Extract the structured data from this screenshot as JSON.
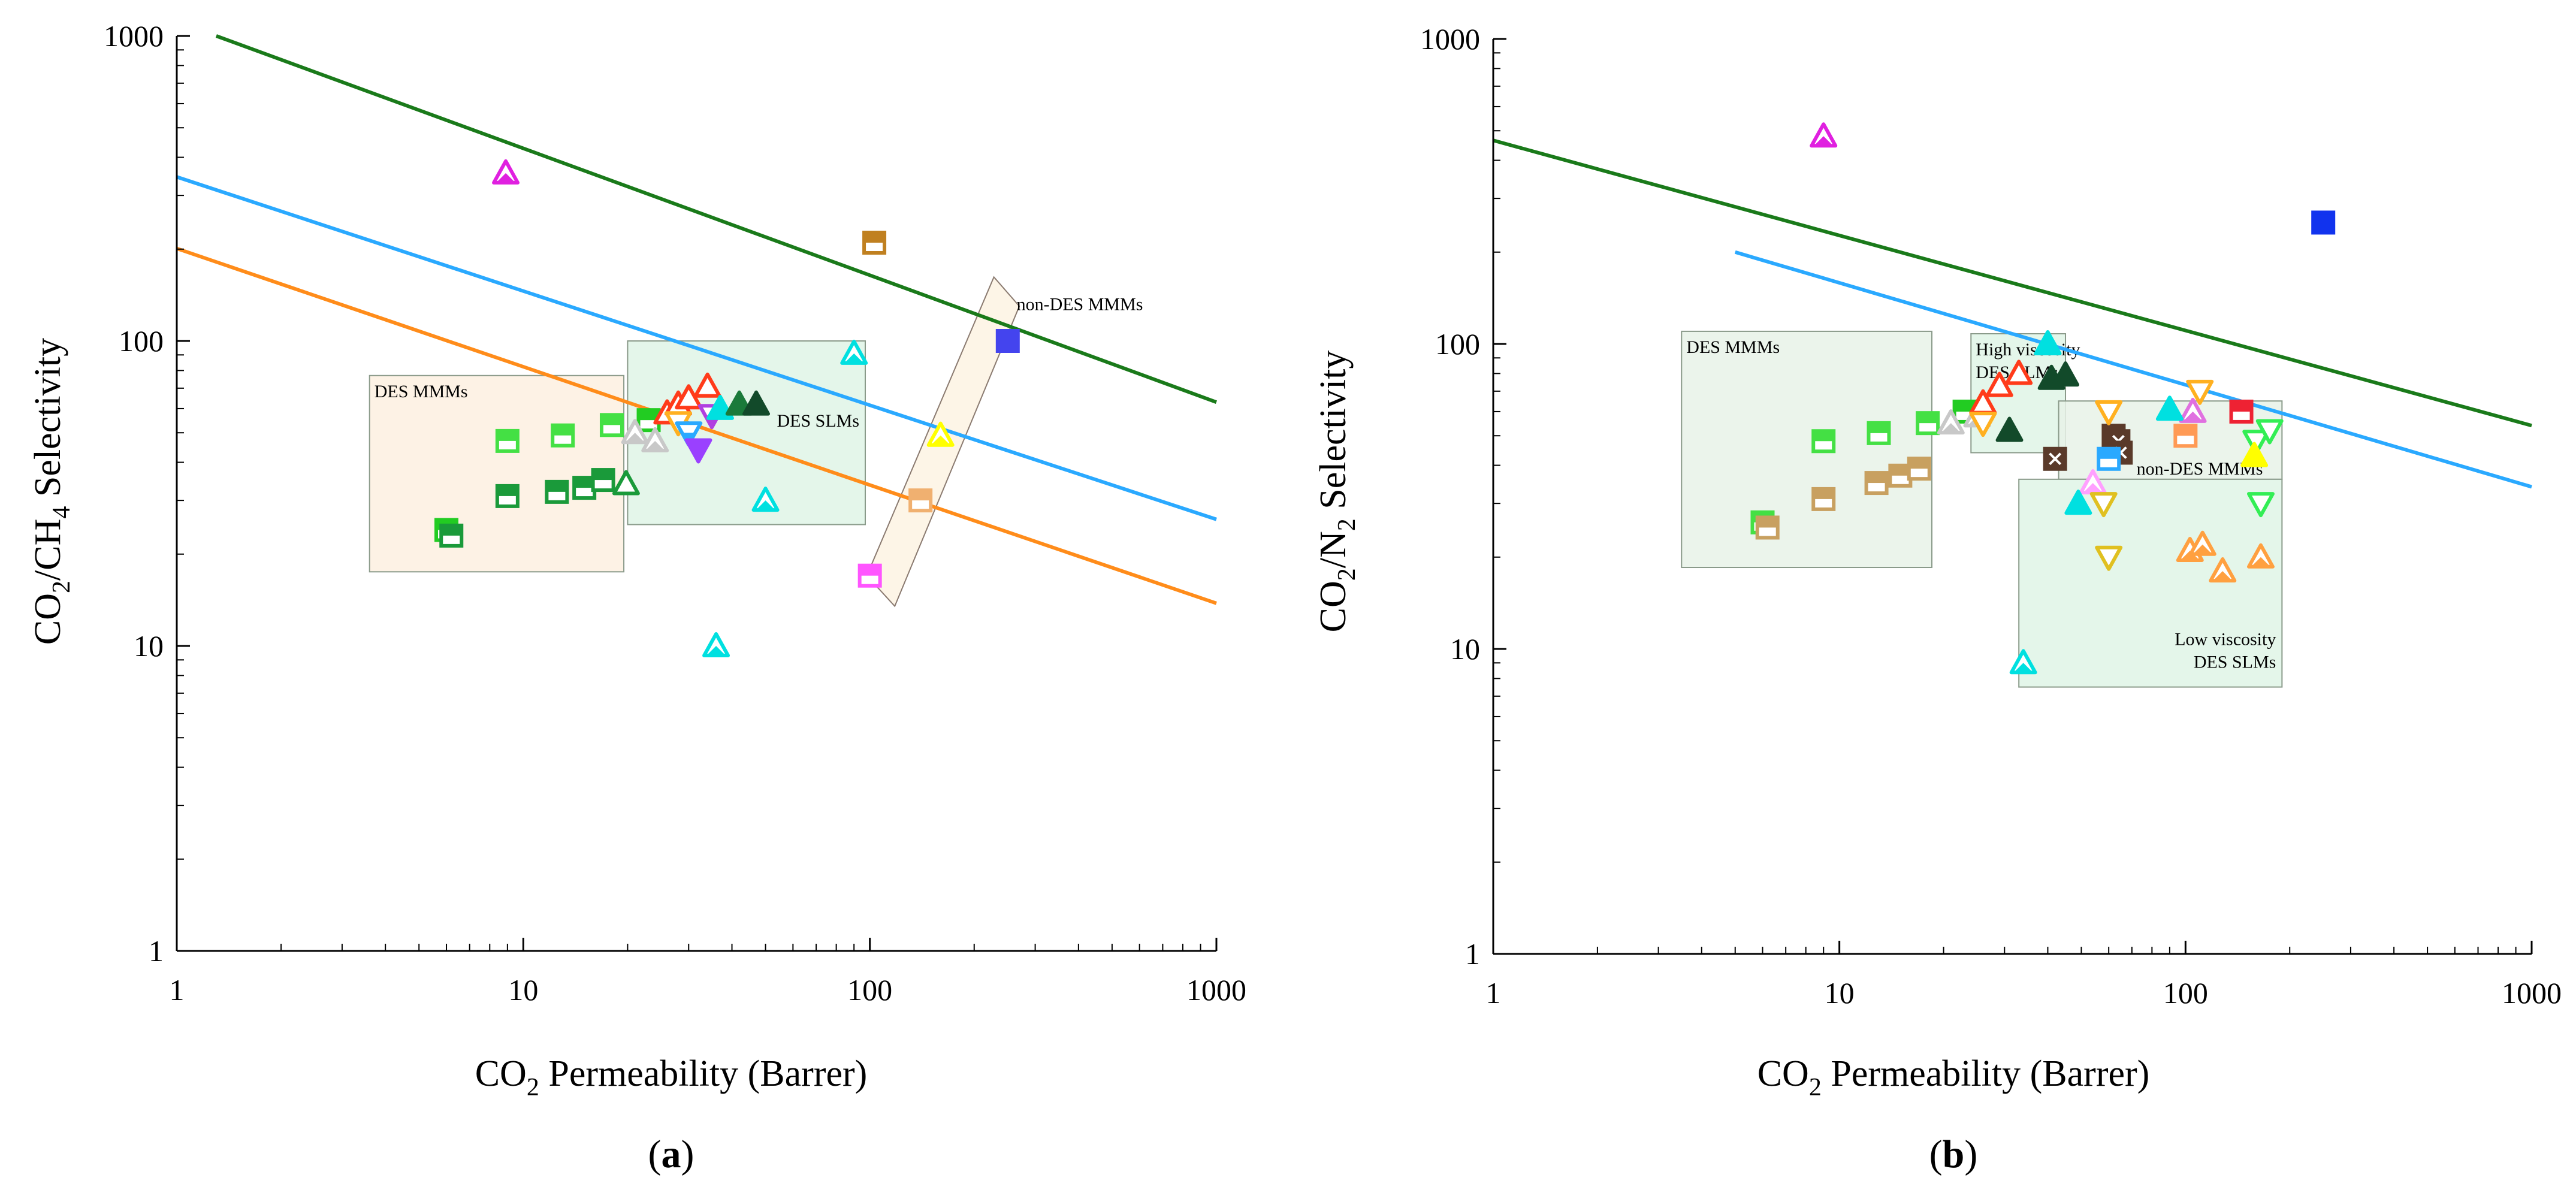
{
  "figure_caption_parts": {
    "a": {
      "open": "(",
      "letter": "a",
      "close": ")"
    },
    "b": {
      "open": "(",
      "letter": "b",
      "close": ")"
    }
  },
  "colors": {
    "robeson_1991": "#1a7a1a",
    "robeson_2008": "#2aa9ff",
    "robeson_2019": "#ff8c1a",
    "region_des_mmm_a": "#fdf0e0",
    "region_green": "#dff5e6",
    "region_nondes": "#fdf3e3"
  },
  "chart_data": [
    {
      "id": "a",
      "type": "scatter",
      "title": "",
      "xlabel": {
        "pre": "CO",
        "sub": "2",
        "post": " Permeability (Barrer)"
      },
      "ylabel": {
        "pre": "CO",
        "sub1": "2",
        "mid": "/CH",
        "sub2": "4",
        "post": " Selectivity"
      },
      "xscale": "log",
      "yscale": "log",
      "xlim": [
        1,
        1000
      ],
      "ylim": [
        1,
        1000
      ],
      "xticks": [
        "1",
        "10",
        "100",
        "1000"
      ],
      "yticks": [
        "1",
        "10",
        "100",
        "1000"
      ],
      "grid": false,
      "upper_bounds": [
        {
          "color": "#1a7a1a",
          "points": [
            [
              1.3,
              1000
            ],
            [
              1000,
              63
            ]
          ]
        },
        {
          "color": "#2aa9ff",
          "points": [
            [
              1,
              345
            ],
            [
              1000,
              26
            ]
          ]
        },
        {
          "color": "#ff8c1a",
          "points": [
            [
              1,
              201
            ],
            [
              1000,
              13.8
            ]
          ]
        }
      ],
      "regions": [
        {
          "label": "DES MMMs",
          "x0": 3.6,
          "x1": 19.5,
          "y0": 17.5,
          "y1": 77,
          "fill": "#fdf0e0",
          "label_at": "top-left"
        },
        {
          "label": "DES SLMs",
          "x0": 20,
          "x1": 97,
          "y0": 25,
          "y1": 100,
          "fill": "#dff5e6",
          "label_at": "right"
        },
        {
          "label": "non-DES MMMs",
          "poly": [
            [
              98,
              17
            ],
            [
              228,
              162
            ],
            [
              270,
              130
            ],
            [
              118,
              13.5
            ]
          ],
          "fill": "#fdf3e3",
          "label_at": "top-right"
        }
      ],
      "points": [
        {
          "x": 8.9,
          "y": 355,
          "marker": "tri-up-half",
          "color": "#e020e0"
        },
        {
          "x": 6,
          "y": 24,
          "marker": "sq-half",
          "color": "#22cc22"
        },
        {
          "x": 6.2,
          "y": 23,
          "marker": "sq-half",
          "color": "#1a9a3a"
        },
        {
          "x": 9,
          "y": 47,
          "marker": "sq-half",
          "color": "#44e044"
        },
        {
          "x": 9,
          "y": 31,
          "marker": "sq-half",
          "color": "#1a9a3a"
        },
        {
          "x": 13,
          "y": 49,
          "marker": "sq-half",
          "color": "#44e044"
        },
        {
          "x": 12.5,
          "y": 32,
          "marker": "sq-half",
          "color": "#1a9a3a"
        },
        {
          "x": 15,
          "y": 33,
          "marker": "sq-half",
          "color": "#1a9a3a"
        },
        {
          "x": 17,
          "y": 35,
          "marker": "sq-half",
          "color": "#1a9a3a"
        },
        {
          "x": 18,
          "y": 53,
          "marker": "sq-half",
          "color": "#44e044"
        },
        {
          "x": 19.8,
          "y": 34,
          "marker": "tri-up-open",
          "color": "#1a9a3a"
        },
        {
          "x": 23,
          "y": 55,
          "marker": "sq-half",
          "color": "#22cc22"
        },
        {
          "x": 21,
          "y": 50,
          "marker": "tri-up-half",
          "color": "#c8c8c8"
        },
        {
          "x": 24,
          "y": 47,
          "marker": "tri-up-half",
          "color": "#c8c8c8"
        },
        {
          "x": 26,
          "y": 58,
          "marker": "tri-up-open",
          "color": "#ff3b1a"
        },
        {
          "x": 28,
          "y": 62,
          "marker": "tri-up-open",
          "color": "#ff3b1a"
        },
        {
          "x": 30,
          "y": 65,
          "marker": "tri-up-open",
          "color": "#ff3b1a"
        },
        {
          "x": 34,
          "y": 71,
          "marker": "tri-up-open",
          "color": "#ff3b1a"
        },
        {
          "x": 28,
          "y": 54,
          "marker": "tri-down-open",
          "color": "#ffb020"
        },
        {
          "x": 30,
          "y": 50,
          "marker": "tri-down-half",
          "color": "#2aa9ff"
        },
        {
          "x": 32,
          "y": 44,
          "marker": "tri-down",
          "color": "#9a40ff"
        },
        {
          "x": 35,
          "y": 57,
          "marker": "tri-down-half",
          "color": "#b040e0"
        },
        {
          "x": 37,
          "y": 60,
          "marker": "tri-up",
          "color": "#00e0e0"
        },
        {
          "x": 42,
          "y": 62,
          "marker": "tri-up",
          "color": "#1a7a3a"
        },
        {
          "x": 47,
          "y": 62,
          "marker": "tri-up",
          "color": "#124a2a"
        },
        {
          "x": 36,
          "y": 10,
          "marker": "tri-up-half",
          "color": "#00e0e0"
        },
        {
          "x": 50,
          "y": 30,
          "marker": "tri-up-half",
          "color": "#00e0e0"
        },
        {
          "x": 90,
          "y": 91,
          "marker": "tri-up-half",
          "color": "#00e0e0"
        },
        {
          "x": 103,
          "y": 210,
          "marker": "sq-half",
          "color": "#c08020"
        },
        {
          "x": 140,
          "y": 30,
          "marker": "sq-half",
          "color": "#f0b070"
        },
        {
          "x": 100,
          "y": 17,
          "marker": "sq-half",
          "color": "#ff55ff"
        },
        {
          "x": 160,
          "y": 49,
          "marker": "tri-up-half",
          "color": "#ffff00"
        },
        {
          "x": 250,
          "y": 100,
          "marker": "sq",
          "color": "#4444ee"
        }
      ]
    },
    {
      "id": "b",
      "type": "scatter",
      "title": "",
      "xlabel": {
        "pre": "CO",
        "sub": "2",
        "post": " Permeability (Barrer)"
      },
      "ylabel": {
        "pre": "CO",
        "sub1": "2",
        "mid": "/N",
        "sub2": "2",
        "post": " Selectivity"
      },
      "xscale": "log",
      "yscale": "log",
      "xlim": [
        1,
        1000
      ],
      "ylim": [
        1,
        1000
      ],
      "xticks": [
        "1",
        "10",
        "100",
        "1000"
      ],
      "yticks": [
        "1",
        "10",
        "100",
        "1000"
      ],
      "grid": false,
      "upper_bounds": [
        {
          "color": "#1a7a1a",
          "points": [
            [
              1,
              465
            ],
            [
              1000,
              54
            ]
          ]
        },
        {
          "color": "#2aa9ff",
          "points": [
            [
              5,
              200
            ],
            [
              1000,
              34
            ]
          ]
        }
      ],
      "regions": [
        {
          "label": "DES MMMs",
          "x0": 3.5,
          "x1": 18.5,
          "y0": 18.5,
          "y1": 110,
          "fill": "#e8f2e8",
          "label_at": "top-left"
        },
        {
          "label": "High viscosity\nDES SLMs",
          "x0": 24,
          "x1": 45,
          "y0": 44,
          "y1": 108,
          "fill": "#dff5e6",
          "label_at": "top-left"
        },
        {
          "label": "non-DES MMMs",
          "x0": 43,
          "x1": 190,
          "y0": 36,
          "y1": 65,
          "fill": "#e8f2e8",
          "label_at": "bottom-left"
        },
        {
          "label": "Low viscosity\nDES SLMs",
          "x0": 33,
          "x1": 190,
          "y0": 7.5,
          "y1": 36,
          "fill": "#dff5e6",
          "label_at": "bottom-right"
        }
      ],
      "points": [
        {
          "x": 9,
          "y": 480,
          "marker": "tri-up-half",
          "color": "#e020e0"
        },
        {
          "x": 250,
          "y": 250,
          "marker": "sq",
          "color": "#1133ee"
        },
        {
          "x": 6,
          "y": 26,
          "marker": "sq-half",
          "color": "#44e044"
        },
        {
          "x": 6.2,
          "y": 25,
          "marker": "sq-half",
          "color": "#c8a060"
        },
        {
          "x": 9,
          "y": 48,
          "marker": "sq-half",
          "color": "#44e044"
        },
        {
          "x": 9,
          "y": 31,
          "marker": "sq-half",
          "color": "#c8a060"
        },
        {
          "x": 13,
          "y": 51,
          "marker": "sq-half",
          "color": "#44e044"
        },
        {
          "x": 12.8,
          "y": 35,
          "marker": "sq-half",
          "color": "#c8a060"
        },
        {
          "x": 15,
          "y": 37,
          "marker": "sq-half",
          "color": "#c8a060"
        },
        {
          "x": 17,
          "y": 39,
          "marker": "sq-half",
          "color": "#c8a060"
        },
        {
          "x": 18,
          "y": 55,
          "marker": "sq-half",
          "color": "#44e044"
        },
        {
          "x": 23,
          "y": 60,
          "marker": "sq-half",
          "color": "#22cc22"
        },
        {
          "x": 21,
          "y": 55,
          "marker": "tri-up-half",
          "color": "#c8c8c8"
        },
        {
          "x": 25,
          "y": 58,
          "marker": "tri-up-half",
          "color": "#c8c8c8"
        },
        {
          "x": 26,
          "y": 64,
          "marker": "tri-up-open",
          "color": "#ff3b1a"
        },
        {
          "x": 29,
          "y": 73,
          "marker": "tri-up-open",
          "color": "#ff3b1a"
        },
        {
          "x": 33,
          "y": 80,
          "marker": "tri-up-open",
          "color": "#ff3b1a"
        },
        {
          "x": 26,
          "y": 55,
          "marker": "tri-down-open",
          "color": "#ffb020"
        },
        {
          "x": 31,
          "y": 52,
          "marker": "tri-up",
          "color": "#124a2a"
        },
        {
          "x": 41,
          "y": 77,
          "marker": "tri-up",
          "color": "#124a2a"
        },
        {
          "x": 45,
          "y": 79,
          "marker": "tri-up",
          "color": "#124a2a"
        },
        {
          "x": 40,
          "y": 100,
          "marker": "tri-up",
          "color": "#00e0e0"
        },
        {
          "x": 42,
          "y": 42,
          "marker": "sq-x",
          "color": "#5a3a2a"
        },
        {
          "x": 62,
          "y": 50,
          "marker": "sq-x",
          "color": "#5a3a2a"
        },
        {
          "x": 64,
          "y": 48,
          "marker": "sq-x",
          "color": "#5a3a2a"
        },
        {
          "x": 65,
          "y": 44,
          "marker": "sq-x",
          "color": "#5a3a2a"
        },
        {
          "x": 100,
          "y": 50,
          "marker": "sq-half",
          "color": "#ff9a55"
        },
        {
          "x": 105,
          "y": 60,
          "marker": "tri-up-half",
          "color": "#e070e0"
        },
        {
          "x": 54,
          "y": 35,
          "marker": "tri-up-half",
          "color": "#ffa0ff"
        },
        {
          "x": 60,
          "y": 60,
          "marker": "tri-down-open",
          "color": "#ffb020"
        },
        {
          "x": 60,
          "y": 42,
          "marker": "sq-half",
          "color": "#2aa9ff"
        },
        {
          "x": 90,
          "y": 61,
          "marker": "tri-up",
          "color": "#00e0e0"
        },
        {
          "x": 110,
          "y": 70,
          "marker": "tri-down-open",
          "color": "#ffb020"
        },
        {
          "x": 145,
          "y": 60,
          "marker": "sq-half",
          "color": "#ee2233"
        },
        {
          "x": 160,
          "y": 48,
          "marker": "tri-down-open",
          "color": "#33ee55"
        },
        {
          "x": 175,
          "y": 52,
          "marker": "tri-down-open",
          "color": "#33ee55"
        },
        {
          "x": 165,
          "y": 30,
          "marker": "tri-down-open",
          "color": "#33ee55"
        },
        {
          "x": 158,
          "y": 43,
          "marker": "tri-up",
          "color": "#ffff00"
        },
        {
          "x": 58,
          "y": 30,
          "marker": "tri-down-open",
          "color": "#e0c020"
        },
        {
          "x": 60,
          "y": 20,
          "marker": "tri-down-open",
          "color": "#e0c020"
        },
        {
          "x": 49,
          "y": 30,
          "marker": "tri-up",
          "color": "#00e0e0"
        },
        {
          "x": 34,
          "y": 9,
          "marker": "tri-up-half",
          "color": "#00e0e0"
        },
        {
          "x": 103,
          "y": 21,
          "marker": "tri-up-half",
          "color": "#ffa040"
        },
        {
          "x": 112,
          "y": 22,
          "marker": "tri-up-half",
          "color": "#ffa040"
        },
        {
          "x": 128,
          "y": 18,
          "marker": "tri-up-half",
          "color": "#ffa040"
        },
        {
          "x": 165,
          "y": 20,
          "marker": "tri-up-half",
          "color": "#ffa040"
        }
      ]
    }
  ]
}
